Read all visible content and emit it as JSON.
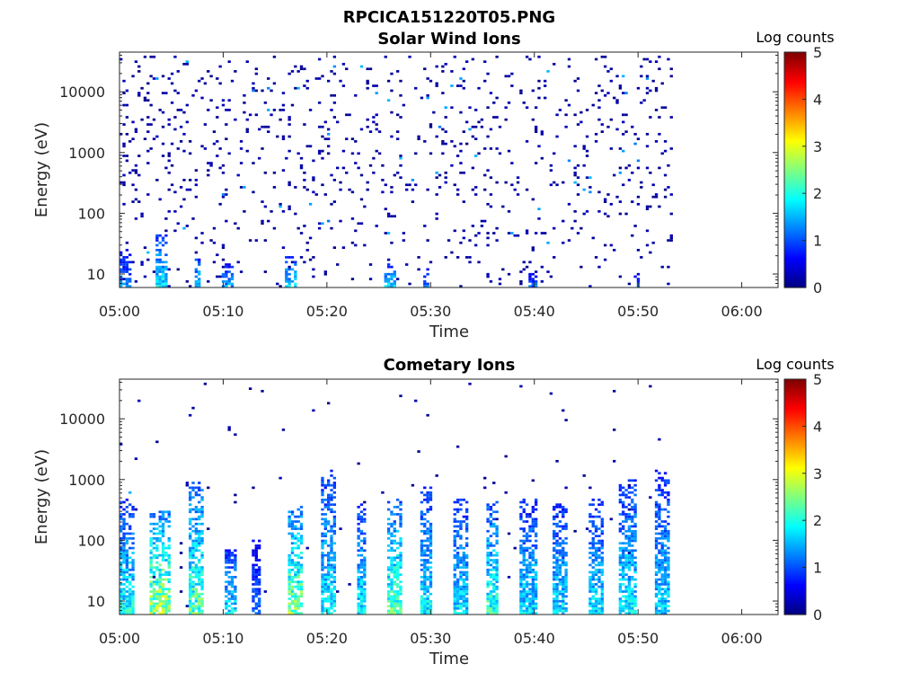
{
  "figure_title": "RPCICA151220T05.PNG",
  "chart_data": [
    {
      "type": "heatmap",
      "title": "Solar Wind Ions",
      "xlabel": "Time",
      "ylabel": "Energy (eV)",
      "x_ticks": [
        "05:00",
        "05:10",
        "05:20",
        "05:30",
        "05:40",
        "05:50",
        "06:00"
      ],
      "y_ticks": [
        "10",
        "100",
        "1000",
        "10000"
      ],
      "y_scale": "log",
      "ylim": [
        6,
        45000
      ],
      "xlim_minutes": [
        0,
        63.5
      ],
      "data_end_minutes": 53.5,
      "colorbar": {
        "title": "Log counts",
        "ticks": [
          "0",
          "1",
          "2",
          "3",
          "4",
          "5"
        ],
        "range": [
          0,
          5
        ],
        "colormap": "jet"
      },
      "seed": 7,
      "bursts": [
        {
          "t": 0.5,
          "w": 0.6,
          "e_top": 25,
          "level": 1.3
        },
        {
          "t": 3.8,
          "w": 0.6,
          "e_top": 50,
          "level": 1.9
        },
        {
          "t": 7.4,
          "w": 0.3,
          "e_top": 20,
          "level": 1.8
        },
        {
          "t": 10.3,
          "w": 0.5,
          "e_top": 15,
          "level": 1.5
        },
        {
          "t": 16.5,
          "w": 0.6,
          "e_top": 20,
          "level": 1.8
        },
        {
          "t": 26.0,
          "w": 0.5,
          "e_top": 15,
          "level": 1.8
        },
        {
          "t": 29.3,
          "w": 0.3,
          "e_top": 12,
          "level": 1.3
        },
        {
          "t": 39.7,
          "w": 0.4,
          "e_top": 10,
          "level": 1.2
        },
        {
          "t": 49.7,
          "w": 0.4,
          "e_top": 10,
          "level": 1.2
        }
      ],
      "background_density": 0.055
    },
    {
      "type": "heatmap",
      "title": "Cometary Ions",
      "xlabel": "Time",
      "ylabel": "Energy (eV)",
      "x_ticks": [
        "05:00",
        "05:10",
        "05:20",
        "05:30",
        "05:40",
        "05:50",
        "06:00"
      ],
      "y_ticks": [
        "10",
        "100",
        "1000",
        "10000"
      ],
      "y_scale": "log",
      "ylim": [
        6,
        45000
      ],
      "xlim_minutes": [
        0,
        63.5
      ],
      "data_end_minutes": 53.5,
      "colorbar": {
        "title": "Log counts",
        "ticks": [
          "0",
          "1",
          "2",
          "3",
          "4",
          "5"
        ],
        "range": [
          0,
          5
        ],
        "colormap": "jet"
      },
      "seed": 23,
      "bursts": [
        {
          "t": 0.6,
          "w": 0.7,
          "e_top": 500,
          "level": 2.0
        },
        {
          "t": 3.8,
          "w": 0.9,
          "e_top": 300,
          "level": 2.8
        },
        {
          "t": 7.3,
          "w": 0.8,
          "e_top": 900,
          "level": 2.4
        },
        {
          "t": 10.5,
          "w": 0.6,
          "e_top": 80,
          "level": 1.8
        },
        {
          "t": 13.0,
          "w": 0.5,
          "e_top": 100,
          "level": 1.2
        },
        {
          "t": 16.8,
          "w": 0.8,
          "e_top": 400,
          "level": 2.6
        },
        {
          "t": 20.0,
          "w": 0.6,
          "e_top": 1500,
          "level": 1.9
        },
        {
          "t": 23.2,
          "w": 0.5,
          "e_top": 400,
          "level": 1.9
        },
        {
          "t": 26.4,
          "w": 0.7,
          "e_top": 500,
          "level": 2.4
        },
        {
          "t": 29.5,
          "w": 0.6,
          "e_top": 800,
          "level": 1.9
        },
        {
          "t": 32.8,
          "w": 0.8,
          "e_top": 500,
          "level": 1.8
        },
        {
          "t": 35.8,
          "w": 0.7,
          "e_top": 500,
          "level": 2.2
        },
        {
          "t": 39.3,
          "w": 0.8,
          "e_top": 500,
          "level": 1.8
        },
        {
          "t": 42.4,
          "w": 0.7,
          "e_top": 400,
          "level": 1.8
        },
        {
          "t": 45.7,
          "w": 0.7,
          "e_top": 500,
          "level": 1.8
        },
        {
          "t": 48.8,
          "w": 0.8,
          "e_top": 1000,
          "level": 1.9
        },
        {
          "t": 52.2,
          "w": 0.7,
          "e_top": 1500,
          "level": 1.7
        }
      ],
      "background_density": 0.004
    }
  ]
}
